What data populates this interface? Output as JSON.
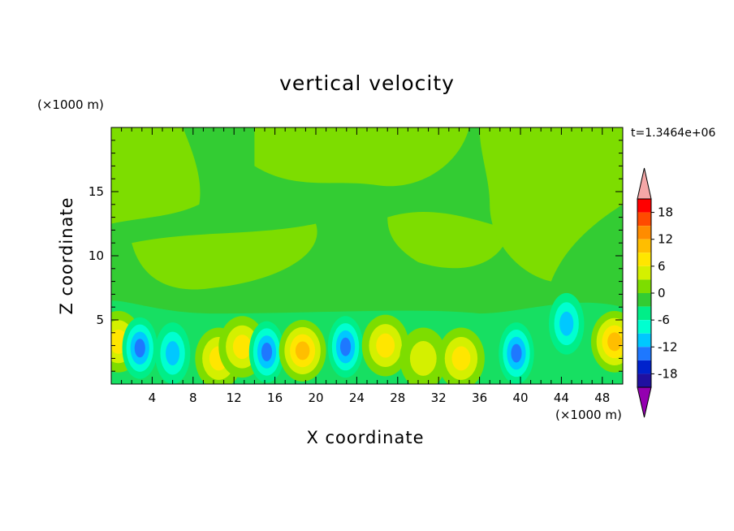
{
  "chart_data": {
    "type": "heatmap",
    "title": "vertical velocity",
    "xlabel": "X coordinate",
    "ylabel": "Z coordinate",
    "x_unit": "(×1000 m)",
    "y_unit": "(×1000 m)",
    "time_label": "t=1.3464e+06",
    "xlim": [
      0,
      50
    ],
    "ylim": [
      0,
      20
    ],
    "x_ticks": [
      4,
      8,
      12,
      16,
      20,
      24,
      28,
      32,
      36,
      40,
      44,
      48
    ],
    "y_ticks": [
      5,
      10,
      15
    ],
    "colorbar": {
      "levels": [
        -21,
        -18,
        -15,
        -12,
        -9,
        -6,
        -3,
        0,
        3,
        6,
        9,
        12,
        15,
        18,
        21
      ],
      "tick_labels": [
        "18",
        "12",
        "6",
        "0",
        "-6",
        "-12",
        "-18"
      ],
      "tick_values": [
        18,
        12,
        6,
        0,
        -6,
        -12,
        -18
      ],
      "colors_top_to_bottom": [
        "#ff0000",
        "#ff4a00",
        "#ff8c00",
        "#ffbe00",
        "#ffe600",
        "#d4f000",
        "#7ddd00",
        "#33cc33",
        "#00ee88",
        "#00ffd0",
        "#00c8ff",
        "#1e78ff",
        "#0022cc",
        "#2010a0"
      ],
      "over_color": "#f4a7a7",
      "under_color": "#9400b0"
    },
    "field_background_value": -1,
    "features": [
      {
        "x": 0.7,
        "z": 3.3,
        "value": 8
      },
      {
        "x": 2.8,
        "z": 2.8,
        "value": -12
      },
      {
        "x": 6.0,
        "z": 2.4,
        "value": -10
      },
      {
        "x": 10.5,
        "z": 2.0,
        "value": 7
      },
      {
        "x": 12.8,
        "z": 2.9,
        "value": 8
      },
      {
        "x": 15.2,
        "z": 2.5,
        "value": -13
      },
      {
        "x": 18.7,
        "z": 2.6,
        "value": 11
      },
      {
        "x": 22.9,
        "z": 2.9,
        "value": -13
      },
      {
        "x": 26.8,
        "z": 3.0,
        "value": 6
      },
      {
        "x": 30.5,
        "z": 2.0,
        "value": 5
      },
      {
        "x": 34.2,
        "z": 2.0,
        "value": 8
      },
      {
        "x": 39.6,
        "z": 2.4,
        "value": -13
      },
      {
        "x": 44.5,
        "z": 4.7,
        "value": -9
      },
      {
        "x": 49.2,
        "z": 3.3,
        "value": 10
      }
    ]
  }
}
